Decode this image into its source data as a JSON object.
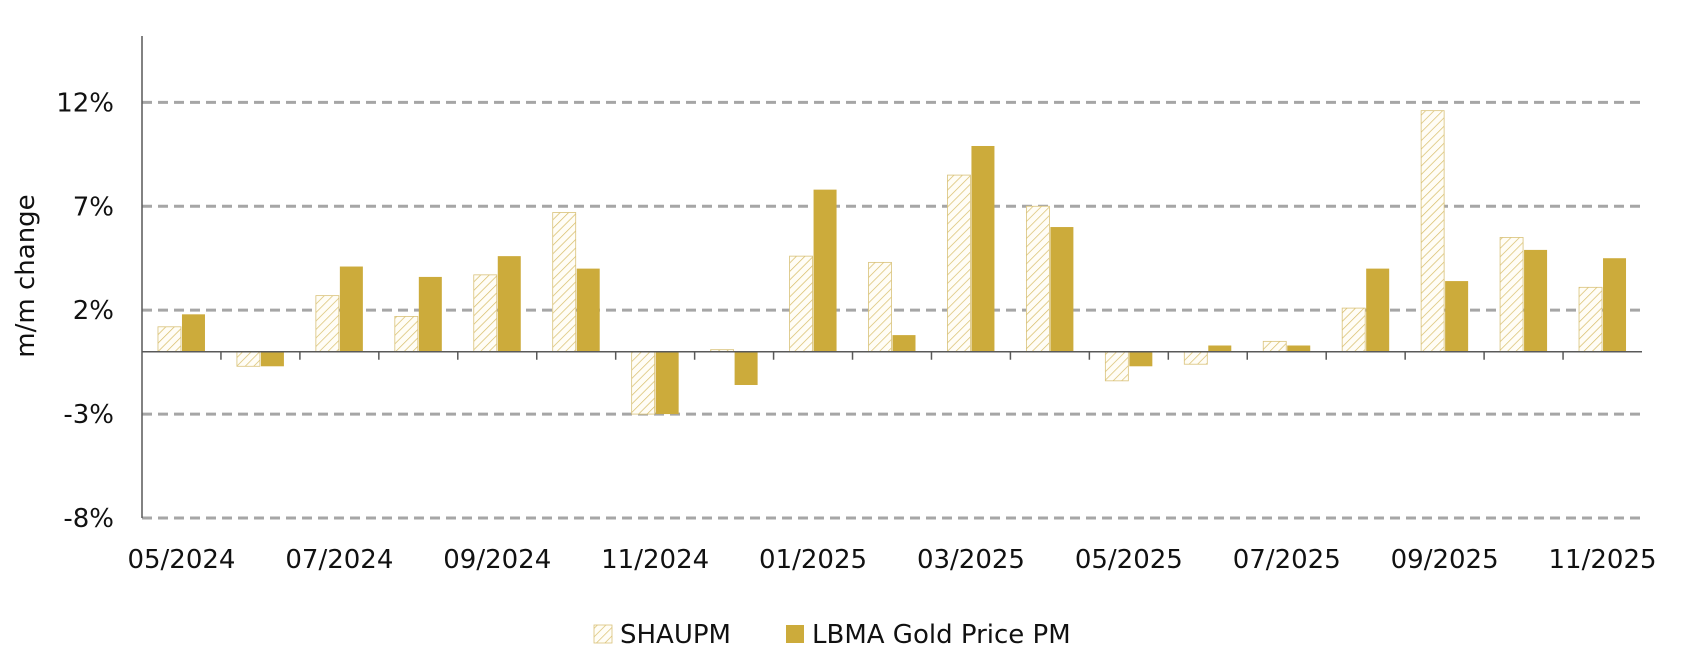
{
  "chart_data": {
    "type": "bar",
    "title": "",
    "xlabel": "",
    "ylabel": "m/m change",
    "ylim": [
      -8,
      15
    ],
    "y_ticks": [
      -8,
      -3,
      2,
      7,
      12
    ],
    "y_tick_labels": [
      "-8%",
      "-3%",
      "2%",
      "7%",
      "12%"
    ],
    "grid": true,
    "legend_position": "bottom-center",
    "categories": [
      "05/2024",
      "06/2024",
      "07/2024",
      "08/2024",
      "09/2024",
      "10/2024",
      "11/2024",
      "12/2024",
      "01/2025",
      "02/2025",
      "03/2025",
      "04/2025",
      "05/2025",
      "06/2025",
      "07/2025",
      "08/2025",
      "09/2025",
      "10/2025",
      "11/2025"
    ],
    "x_tick_labels": [
      "05/2024",
      "",
      "07/2024",
      "",
      "09/2024",
      "",
      "11/2024",
      "",
      "01/2025",
      "",
      "03/2025",
      "",
      "05/2025",
      "",
      "07/2025",
      "",
      "09/2025",
      "",
      "11/2025"
    ],
    "series": [
      {
        "name": "SHAUPM",
        "style": "hatched",
        "color": "#d7bd67",
        "values": [
          1.2,
          -0.7,
          2.7,
          1.7,
          3.7,
          6.7,
          -3.0,
          0.1,
          4.6,
          4.3,
          8.5,
          7.0,
          -1.4,
          -0.6,
          0.5,
          2.1,
          11.6,
          5.5,
          3.1
        ]
      },
      {
        "name": "LBMA Gold Price PM",
        "style": "solid",
        "color": "#ccab3b",
        "values": [
          1.8,
          -0.7,
          4.1,
          3.6,
          4.6,
          4.0,
          -3.0,
          -1.6,
          7.8,
          0.8,
          9.9,
          6.0,
          -0.7,
          0.3,
          0.3,
          4.0,
          3.4,
          4.9,
          4.5
        ]
      }
    ]
  }
}
